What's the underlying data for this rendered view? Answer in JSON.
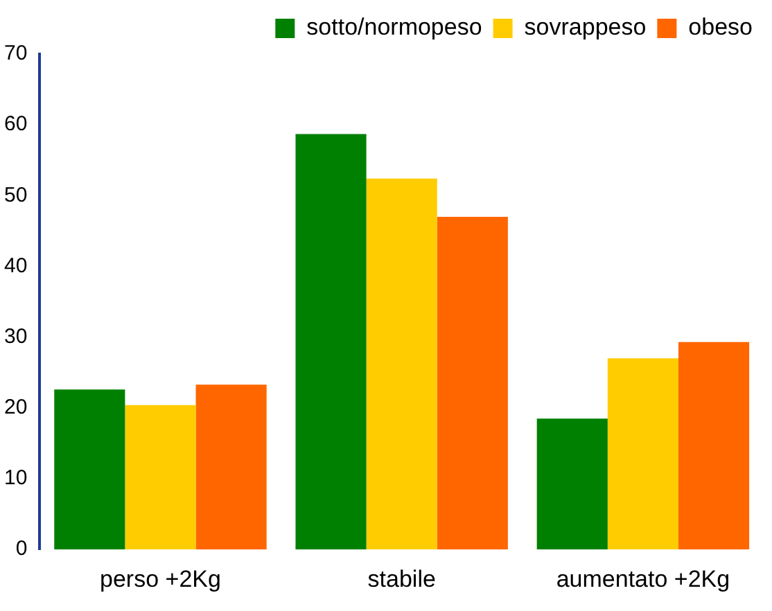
{
  "chart_data": {
    "type": "bar",
    "categories": [
      "perso +2Kg",
      "stabile",
      "aumentato +2Kg"
    ],
    "series": [
      {
        "name": "sotto/normopeso",
        "color": "#008000",
        "values": [
          22.6,
          58.7,
          18.5
        ]
      },
      {
        "name": "sovrappeso",
        "color": "#ffcc00",
        "values": [
          20.4,
          52.4,
          27.0
        ]
      },
      {
        "name": "obeso",
        "color": "#ff6600",
        "values": [
          23.3,
          47.0,
          29.3
        ]
      }
    ],
    "ylim": [
      0,
      70
    ],
    "yticks": [
      0,
      10,
      20,
      30,
      40,
      50,
      60,
      70
    ],
    "grid": false,
    "legend": "top right"
  }
}
